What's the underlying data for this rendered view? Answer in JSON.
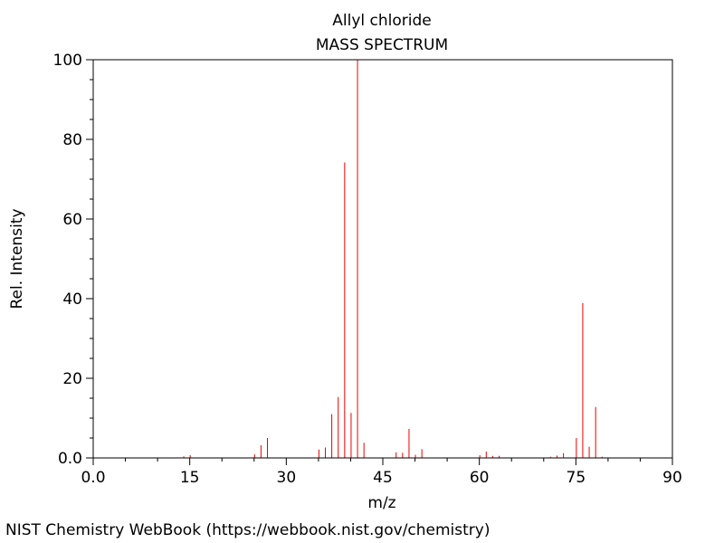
{
  "chart_data": {
    "type": "bar",
    "title": "Allyl chloride",
    "subtitle": "MASS SPECTRUM",
    "xlabel": "m/z",
    "ylabel": "Rel. Intensity",
    "xlim": [
      0,
      90
    ],
    "ylim": [
      0,
      100
    ],
    "x_ticks": [
      "0.0",
      "15",
      "30",
      "45",
      "60",
      "75",
      "90"
    ],
    "y_ticks": [
      "0.0",
      "20",
      "40",
      "60",
      "80",
      "100"
    ],
    "grid": false,
    "bar_color": "#ee0000",
    "peaks": [
      {
        "mz": 14,
        "intensity": 0.4
      },
      {
        "mz": 15,
        "intensity": 0.7
      },
      {
        "mz": 25,
        "intensity": 0.9
      },
      {
        "mz": 26,
        "intensity": 3.2
      },
      {
        "mz": 27,
        "intensity": 5.0
      },
      {
        "mz": 35,
        "intensity": 2.1
      },
      {
        "mz": 36,
        "intensity": 2.6
      },
      {
        "mz": 37,
        "intensity": 11.0
      },
      {
        "mz": 38,
        "intensity": 15.3
      },
      {
        "mz": 39,
        "intensity": 74.2
      },
      {
        "mz": 40,
        "intensity": 11.3
      },
      {
        "mz": 41,
        "intensity": 100.0
      },
      {
        "mz": 42,
        "intensity": 3.8
      },
      {
        "mz": 47,
        "intensity": 1.4
      },
      {
        "mz": 48,
        "intensity": 1.3
      },
      {
        "mz": 49,
        "intensity": 7.3
      },
      {
        "mz": 50,
        "intensity": 0.8
      },
      {
        "mz": 51,
        "intensity": 2.2
      },
      {
        "mz": 60,
        "intensity": 0.7
      },
      {
        "mz": 61,
        "intensity": 1.6
      },
      {
        "mz": 62,
        "intensity": 0.5
      },
      {
        "mz": 63,
        "intensity": 0.5
      },
      {
        "mz": 71,
        "intensity": 0.3
      },
      {
        "mz": 72,
        "intensity": 0.6
      },
      {
        "mz": 73,
        "intensity": 1.2
      },
      {
        "mz": 75,
        "intensity": 5.0
      },
      {
        "mz": 76,
        "intensity": 38.9
      },
      {
        "mz": 77,
        "intensity": 2.8
      },
      {
        "mz": 78,
        "intensity": 12.8
      },
      {
        "mz": 79,
        "intensity": 0.3
      }
    ]
  },
  "footer": {
    "credit": "NIST Chemistry WebBook (https://webbook.nist.gov/chemistry)"
  }
}
